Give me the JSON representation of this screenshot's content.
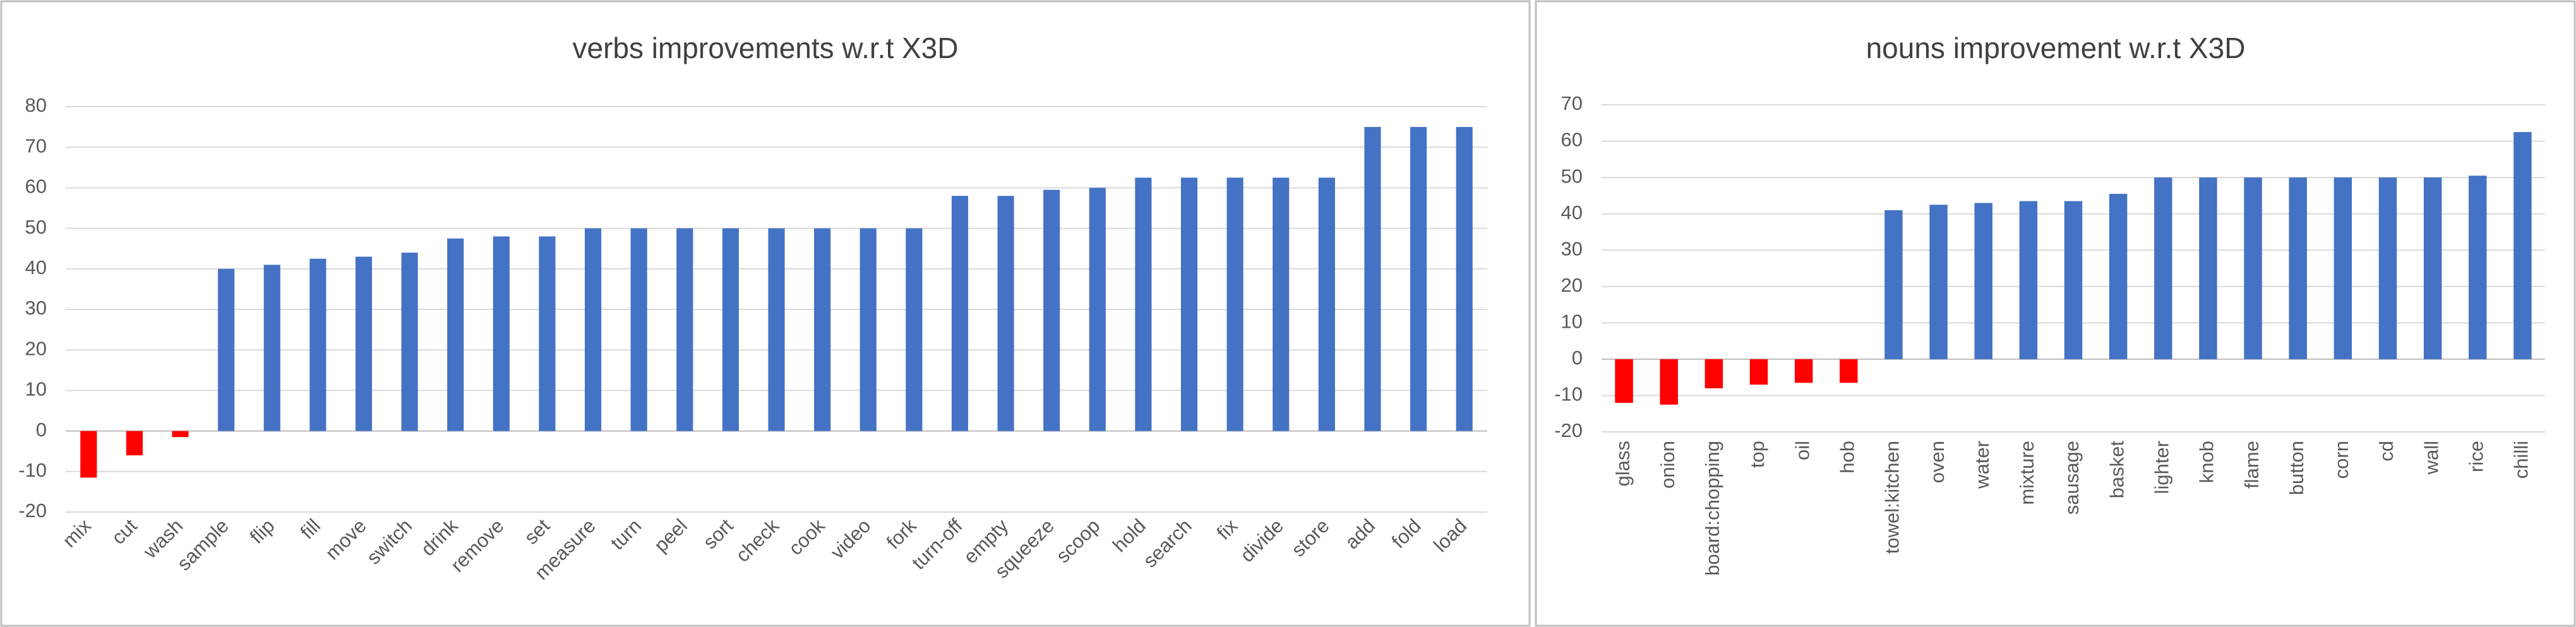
{
  "chart_data": [
    {
      "type": "bar",
      "title": "verbs improvements w.r.t X3D",
      "categories": [
        "mix",
        "cut",
        "wash",
        "sample",
        "flip",
        "fill",
        "move",
        "switch",
        "drink",
        "remove",
        "set",
        "measure",
        "turn",
        "peel",
        "sort",
        "check",
        "cook",
        "video",
        "fork",
        "turn-off",
        "empty",
        "squeeze",
        "scoop",
        "hold",
        "search",
        "fix",
        "divide",
        "store",
        "add",
        "fold",
        "load"
      ],
      "values": [
        -11.5,
        -6,
        -1.5,
        40,
        41,
        42.5,
        43,
        44,
        47.5,
        48,
        48,
        50,
        50,
        50,
        50,
        50,
        50,
        50,
        50,
        58,
        58,
        59.5,
        60,
        62.5,
        62.5,
        62.5,
        62.5,
        62.5,
        75,
        75,
        75
      ],
      "positive_color": "#4472c4",
      "negative_color": "#ff0000",
      "ylim": [
        -20,
        80
      ],
      "yticks": [
        -20,
        -10,
        0,
        10,
        20,
        30,
        40,
        50,
        60,
        70,
        80
      ],
      "grid": true
    },
    {
      "type": "bar",
      "title": "nouns improvement w.r.t X3D",
      "categories": [
        "glass",
        "onion",
        "board:chopping",
        "top",
        "oil",
        "hob",
        "towel:kitchen",
        "oven",
        "water",
        "mixture",
        "sausage",
        "basket",
        "lighter",
        "knob",
        "flame",
        "button",
        "corn",
        "cd",
        "wall",
        "rice",
        "chilli"
      ],
      "values": [
        -12,
        -12.5,
        -8,
        -7,
        -6.5,
        -6.5,
        41,
        42.5,
        43,
        43.5,
        43.5,
        45.5,
        50,
        50,
        50,
        50,
        50,
        50,
        50,
        50.5,
        62.5
      ],
      "positive_color": "#4472c4",
      "negative_color": "#ff0000",
      "ylim": [
        -20,
        70
      ],
      "yticks": [
        -20,
        -10,
        0,
        10,
        20,
        30,
        40,
        50,
        60,
        70
      ],
      "grid": true
    }
  ]
}
